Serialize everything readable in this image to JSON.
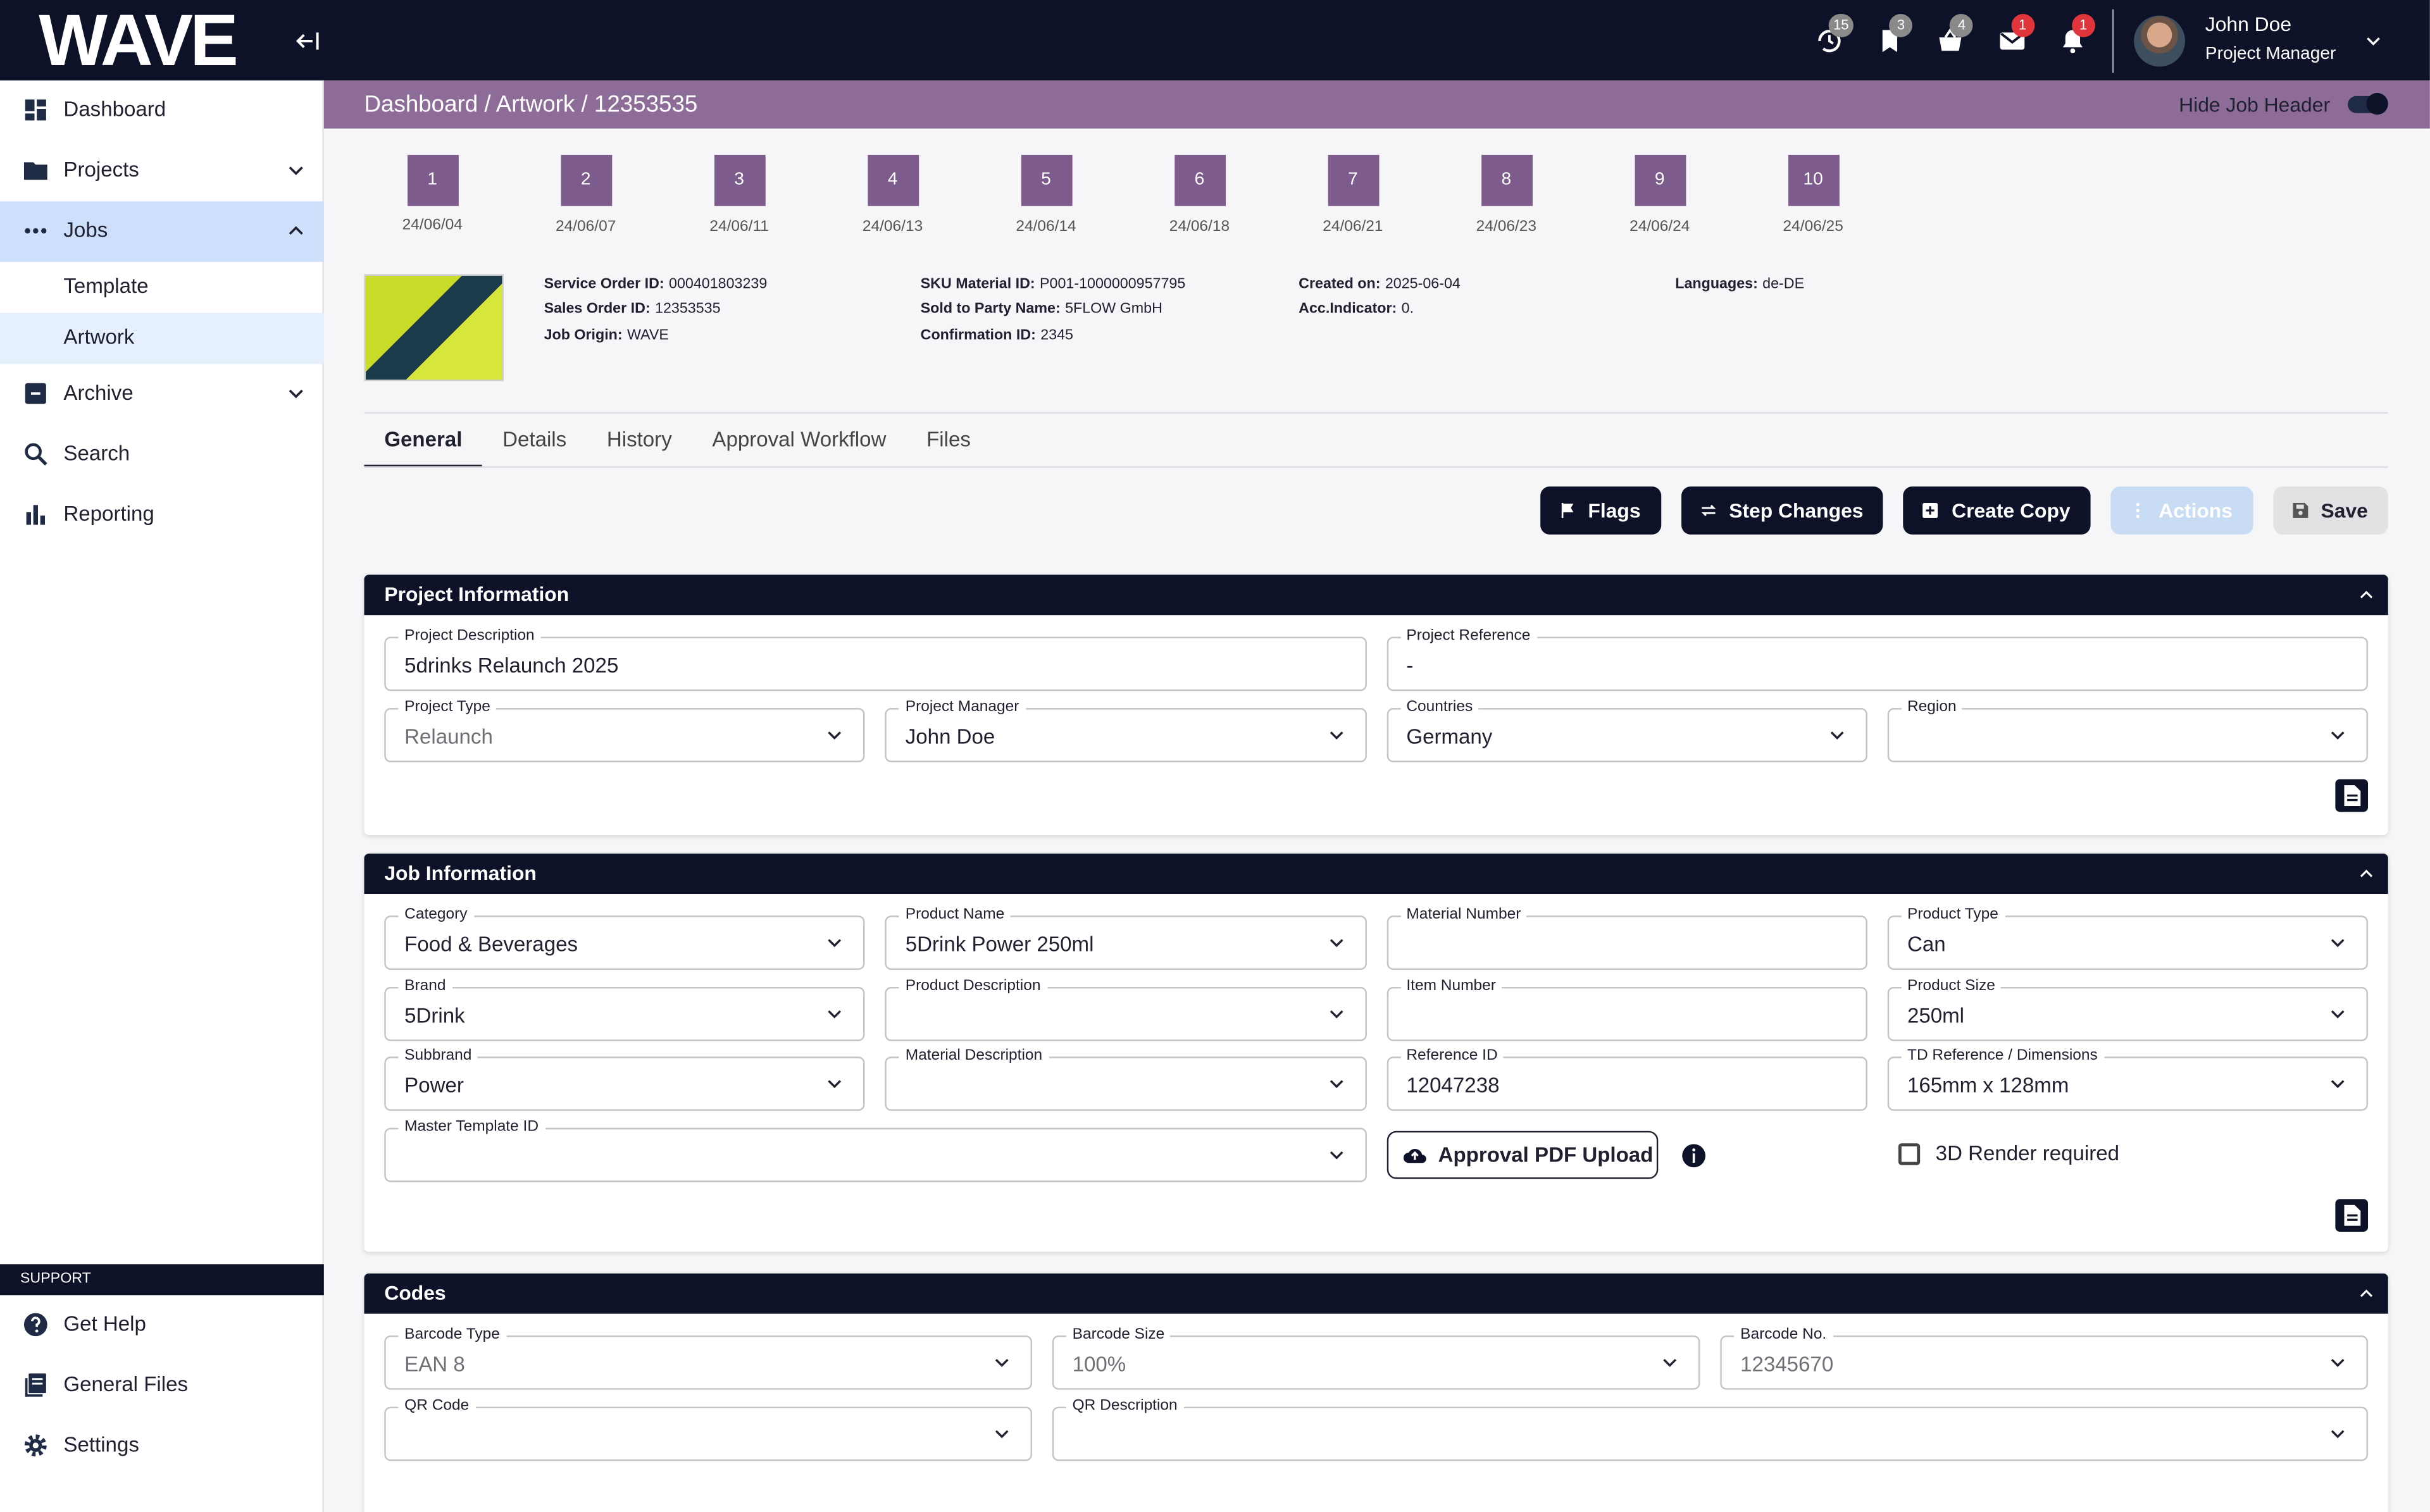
{
  "header": {
    "logo": "WAVE",
    "notifications": [
      {
        "count": 15,
        "color": "#8a8a8a"
      },
      {
        "count": 3,
        "color": "#8a8a8a"
      },
      {
        "count": 4,
        "color": "#8a8a8a"
      },
      {
        "count": 1,
        "color": "#e0353b"
      },
      {
        "count": 1,
        "color": "#e0353b"
      }
    ],
    "user": {
      "name": "John Doe",
      "role": "Project Manager"
    }
  },
  "sidebar": {
    "items": [
      {
        "label": "Dashboard"
      },
      {
        "label": "Projects",
        "chevron": "down"
      },
      {
        "label": "Jobs",
        "chevron": "up",
        "highlight": "strong"
      },
      {
        "label": "Template",
        "sub": true
      },
      {
        "label": "Artwork",
        "sub": true,
        "highlight": "light"
      },
      {
        "label": "Archive",
        "chevron": "down"
      },
      {
        "label": "Search"
      },
      {
        "label": "Reporting"
      }
    ],
    "support": {
      "title": "SUPPORT",
      "items": [
        "Get Help",
        "General Files",
        "Settings"
      ]
    }
  },
  "job_bar": {
    "breadcrumb": "Dashboard / Artwork / 12353535",
    "toggle_label": "Hide Job Header",
    "toggle_on": true
  },
  "steps": [
    {
      "number": 1,
      "date": "24/06/04"
    },
    {
      "number": 2,
      "date": "24/06/07"
    },
    {
      "number": 3,
      "date": "24/06/11"
    },
    {
      "number": 4,
      "date": "24/06/13"
    },
    {
      "number": 5,
      "date": "24/06/14"
    },
    {
      "number": 6,
      "date": "24/06/18"
    },
    {
      "number": 7,
      "date": "24/06/21"
    },
    {
      "number": 8,
      "date": "24/06/23"
    },
    {
      "number": 9,
      "date": "24/06/24"
    },
    {
      "number": 10,
      "date": "24/06/25"
    }
  ],
  "job_details": [
    [
      {
        "label": "Service Order ID:",
        "value": "000401803239"
      },
      {
        "label": "Sales Order ID:",
        "value": "12353535"
      },
      {
        "label": "Job Origin:",
        "value": "WAVE"
      }
    ],
    [
      {
        "label": "SKU Material ID:",
        "value": "P001-1000000957795"
      },
      {
        "label": "Sold to Party Name:",
        "value": "5FLOW GmbH"
      },
      {
        "label": "Confirmation ID:",
        "value": "2345"
      }
    ],
    [
      {
        "label": "Created on:",
        "value": "2025-06-04"
      },
      {
        "label": "Acc.Indicator:",
        "value": "0."
      }
    ],
    [
      {
        "label": "Languages:",
        "value": "de-DE"
      }
    ]
  ],
  "tabs": {
    "items": [
      "General",
      "Details",
      "History",
      "Approval Workflow",
      "Files"
    ],
    "active": 0
  },
  "toolbar": [
    {
      "label": "Flags",
      "style": "dark"
    },
    {
      "label": "Step Changes",
      "style": "dark"
    },
    {
      "label": "Create Copy",
      "style": "dark"
    },
    {
      "label": "Actions",
      "style": "disabled"
    },
    {
      "label": "Save",
      "style": "light"
    }
  ],
  "sections": [
    {
      "title": "Project Information",
      "fields": [
        {
          "label": "Project Description",
          "value": "5drinks Relaunch 2025"
        },
        {
          "label": "Project Reference",
          "value": "-"
        },
        {
          "label": "Project Type",
          "value": "Relaunch",
          "select": true,
          "muted": true
        },
        {
          "label": "Project Manager",
          "value": "John Doe",
          "select": true
        },
        {
          "label": "Countries",
          "value": "Germany",
          "select": true
        },
        {
          "label": "Region",
          "select": true
        }
      ]
    },
    {
      "title": "Job Information",
      "fields": [
        {
          "label": "Category",
          "value": "Food & Beverages",
          "select": true
        },
        {
          "label": "Product Name",
          "value": "5Drink Power 250ml",
          "select": true
        },
        {
          "label": "Material Number"
        },
        {
          "label": "Product Type",
          "value": "Can",
          "select": true
        },
        {
          "label": "Brand",
          "value": "5Drink",
          "select": true
        },
        {
          "label": "Product Description",
          "select": true
        },
        {
          "label": "Item Number"
        },
        {
          "label": "Product Size",
          "value": "250ml",
          "select": true
        },
        {
          "label": "Subbrand",
          "value": "Power",
          "select": true
        },
        {
          "label": "Material Description",
          "select": true
        },
        {
          "label": "Reference ID",
          "value": "12047238"
        },
        {
          "label": "TD Reference / Dimensions",
          "value": "165mm x 128mm",
          "select": true
        },
        {
          "label": "Master Template ID",
          "select": true
        }
      ],
      "upload_button": "Approval PDF Upload",
      "checkbox": {
        "label": "3D Render required",
        "checked": false
      }
    },
    {
      "title": "Codes",
      "fields": [
        {
          "label": "Barcode Type",
          "value": "EAN 8",
          "select": true,
          "muted": true
        },
        {
          "label": "Barcode Size",
          "value": "100%",
          "select": true,
          "muted": true
        },
        {
          "label": "Barcode No.",
          "value": "12345670",
          "select": true,
          "muted": true
        },
        {
          "label": "QR Code",
          "select": true
        },
        {
          "label": "QR Description",
          "select": true
        }
      ]
    }
  ]
}
